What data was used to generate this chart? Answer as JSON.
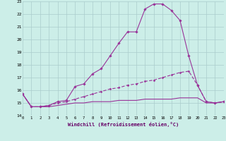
{
  "xlabel": "Windchill (Refroidissement éolien,°C)",
  "background_color": "#cceee8",
  "grid_color": "#aacccc",
  "line_color": "#993399",
  "xmin": 0,
  "xmax": 23,
  "ymin": 14,
  "ymax": 23,
  "line1_x": [
    0,
    1,
    2,
    3,
    4,
    5,
    6,
    7,
    8,
    9,
    10,
    11,
    12,
    13,
    14,
    15,
    16,
    17,
    18,
    19,
    20,
    21,
    22,
    23
  ],
  "line1_y": [
    15.7,
    14.7,
    14.7,
    14.8,
    15.1,
    15.2,
    16.3,
    16.5,
    17.3,
    17.7,
    18.7,
    19.7,
    20.6,
    20.6,
    22.4,
    22.8,
    22.8,
    22.3,
    21.5,
    18.7,
    16.4,
    15.1,
    15.0,
    15.1
  ],
  "line2_x": [
    0,
    1,
    2,
    3,
    4,
    5,
    6,
    7,
    8,
    9,
    10,
    11,
    12,
    13,
    14,
    15,
    16,
    17,
    18,
    19,
    20,
    21,
    22,
    23
  ],
  "line2_y": [
    15.7,
    14.7,
    14.7,
    14.8,
    15.0,
    15.1,
    15.3,
    15.5,
    15.7,
    15.9,
    16.1,
    16.2,
    16.4,
    16.5,
    16.7,
    16.8,
    17.0,
    17.2,
    17.4,
    17.5,
    16.4,
    15.1,
    15.0,
    15.1
  ],
  "line3_x": [
    0,
    1,
    2,
    3,
    4,
    5,
    6,
    7,
    8,
    9,
    10,
    11,
    12,
    13,
    14,
    15,
    16,
    17,
    18,
    19,
    20,
    21,
    22,
    23
  ],
  "line3_y": [
    15.7,
    14.7,
    14.7,
    14.7,
    14.8,
    14.9,
    15.0,
    15.0,
    15.1,
    15.1,
    15.1,
    15.2,
    15.2,
    15.2,
    15.3,
    15.3,
    15.3,
    15.3,
    15.4,
    15.4,
    15.4,
    15.0,
    15.0,
    15.1
  ]
}
